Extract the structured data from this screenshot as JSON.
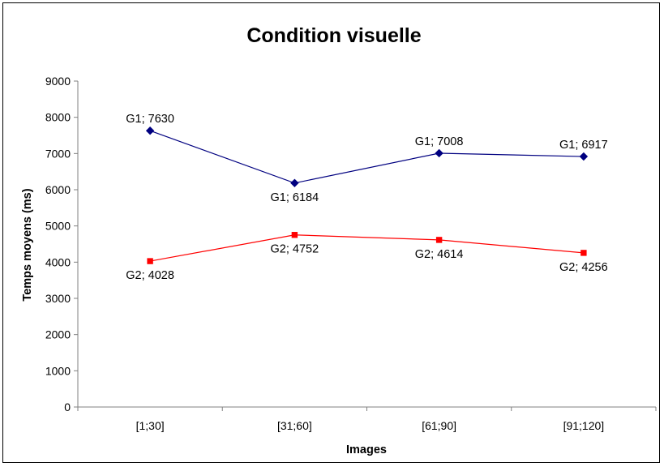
{
  "chart_data": {
    "type": "line",
    "title": "Condition visuelle",
    "xlabel": "Images",
    "ylabel": "Temps moyens (ms)",
    "categories": [
      "[1;30]",
      "[31;60]",
      "[61;90]",
      "[91;120]"
    ],
    "ylim": [
      0,
      9000
    ],
    "yticks": [
      0,
      1000,
      2000,
      3000,
      4000,
      5000,
      6000,
      7000,
      8000,
      9000
    ],
    "grid": false,
    "legend": "none",
    "series": [
      {
        "name": "G1",
        "values": [
          7630,
          6184,
          7008,
          6917
        ],
        "labels": [
          "G1; 7630",
          "G1; 6184",
          "G1; 7008",
          "G1; 6917"
        ],
        "color": "#000080",
        "marker": "diamond"
      },
      {
        "name": "G2",
        "values": [
          4028,
          4752,
          4614,
          4256
        ],
        "labels": [
          "G2; 4028",
          "G2; 4752",
          "G2; 4614",
          "G2; 4256"
        ],
        "color": "#ff0000",
        "marker": "square"
      }
    ]
  }
}
